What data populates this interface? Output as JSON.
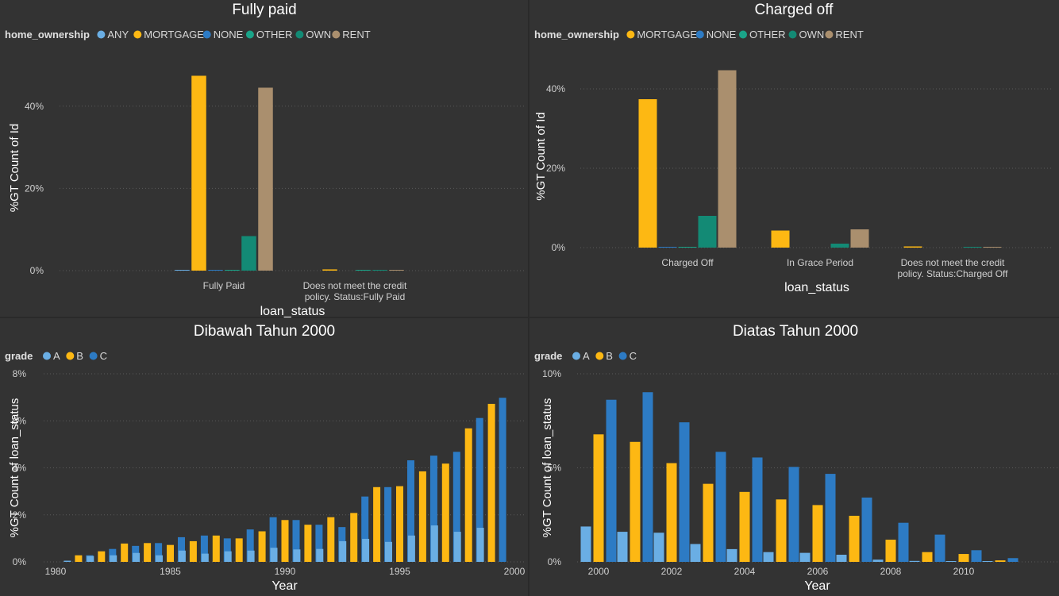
{
  "colors": {
    "background": "#333333",
    "grid": "#5a5a5a",
    "text": "#ffffff",
    "tick_text": "#d0d0d0",
    "ANY": "#6aaee4",
    "MORTGAGE": "#fdb813",
    "NONE": "#2d7bc4",
    "OTHER": "#1aa489",
    "OWN": "#138a75",
    "RENT": "#aa8f6e",
    "A": "#6aaee4",
    "B": "#fdb813",
    "C": "#2d7bc4"
  },
  "chart_data": [
    {
      "type": "bar",
      "title": "Fully paid",
      "xlabel": "loan_status",
      "ylabel": "%GT Count of Id",
      "legend_title": "home_ownership",
      "legend_position": "top-left",
      "ylim": [
        0,
        0.5
      ],
      "yticks": [
        0,
        0.2,
        0.4
      ],
      "ytick_labels": [
        "0%",
        "20%",
        "40%"
      ],
      "grid": true,
      "categories": [
        [
          "Fully Paid"
        ],
        [
          "Does not meet the credit",
          "policy. Status:Fully Paid"
        ]
      ],
      "series": [
        {
          "name": "ANY",
          "values": [
            0.0003,
            0
          ]
        },
        {
          "name": "MORTGAGE",
          "values": [
            0.474,
            0.003
          ]
        },
        {
          "name": "NONE",
          "values": [
            0.0003,
            0
          ]
        },
        {
          "name": "OTHER",
          "values": [
            0.0005,
            0.0003
          ]
        },
        {
          "name": "OWN",
          "values": [
            0.084,
            0.0004
          ]
        },
        {
          "name": "RENT",
          "values": [
            0.445,
            0.001
          ]
        }
      ]
    },
    {
      "type": "bar",
      "title": "Charged off",
      "xlabel": "loan_status",
      "ylabel": "%GT Count of Id",
      "legend_title": "home_ownership",
      "legend_position": "top-left",
      "ylim": [
        0,
        0.46
      ],
      "yticks": [
        0,
        0.2,
        0.4
      ],
      "ytick_labels": [
        "0%",
        "20%",
        "40%"
      ],
      "grid": true,
      "categories": [
        [
          "Charged Off"
        ],
        [
          "In Grace Period"
        ],
        [
          "Does not meet the credit",
          "policy. Status:Charged Off"
        ]
      ],
      "series": [
        {
          "name": "MORTGAGE",
          "values": [
            0.374,
            0.043,
            0.003
          ]
        },
        {
          "name": "NONE",
          "values": [
            0.0003,
            0,
            0
          ]
        },
        {
          "name": "OTHER",
          "values": [
            0.0005,
            0,
            0
          ]
        },
        {
          "name": "OWN",
          "values": [
            0.08,
            0.01,
            0.0003
          ]
        },
        {
          "name": "RENT",
          "values": [
            0.447,
            0.046,
            0.001
          ]
        }
      ]
    },
    {
      "type": "bar",
      "title": "Dibawah Tahun 2000",
      "xlabel": "Year",
      "ylabel": "%GT Count of loan_status",
      "legend_title": "grade",
      "legend_position": "top-left",
      "ylim": [
        0,
        0.08
      ],
      "yticks": [
        0,
        0.02,
        0.04,
        0.06,
        0.08
      ],
      "ytick_labels": [
        "0%",
        "2%",
        "4%",
        "6%",
        "8%"
      ],
      "grid": true,
      "xlim": [
        1980,
        2000
      ],
      "xticks": [
        1980,
        1985,
        1990,
        1995,
        2000
      ],
      "xtick_labels": [
        "1980",
        "1985",
        "1990",
        "1995",
        "2000"
      ],
      "x": [
        1981,
        1982,
        1983,
        1984,
        1985,
        1986,
        1987,
        1988,
        1989,
        1990,
        1991,
        1992,
        1993,
        1994,
        1995,
        1996,
        1997,
        1998,
        1999
      ],
      "series": [
        {
          "name": "A",
          "values": [
            0.0005,
            0.0025,
            0.0028,
            0.0038,
            0.0028,
            0.0048,
            0.0035,
            0.0045,
            0.0048,
            0.006,
            0.0053,
            0.0055,
            0.0088,
            0.0098,
            0.0085,
            0.0112,
            0.0155,
            0.0128,
            0.0145
          ]
        },
        {
          "name": "B",
          "values": [
            0.0028,
            0.0045,
            0.0078,
            0.008,
            0.0072,
            0.0088,
            0.0112,
            0.01,
            0.013,
            0.0178,
            0.0158,
            0.019,
            0.0208,
            0.0318,
            0.0322,
            0.0385,
            0.0418,
            0.0568,
            0.0672
          ]
        },
        {
          "name": "C",
          "values": [
            0.0028,
            0.0055,
            0.0068,
            0.008,
            0.0105,
            0.0112,
            0.01,
            0.0138,
            0.019,
            0.0178,
            0.0158,
            0.0148,
            0.0278,
            0.0318,
            0.0432,
            0.0452,
            0.0468,
            0.0612,
            0.0698
          ]
        }
      ]
    },
    {
      "type": "bar",
      "title": "Diatas Tahun 2000",
      "xlabel": "Year",
      "ylabel": "%GT Count of loan_status",
      "legend_title": "grade",
      "legend_position": "top-left",
      "ylim": [
        0,
        0.1
      ],
      "yticks": [
        0,
        0.05,
        0.1
      ],
      "ytick_labels": [
        "0%",
        "5%",
        "10%"
      ],
      "grid": true,
      "xlim": [
        2000,
        2011
      ],
      "xticks": [
        2000,
        2002,
        2004,
        2006,
        2008,
        2010
      ],
      "xtick_labels": [
        "2000",
        "2002",
        "2004",
        "2006",
        "2008",
        "2010"
      ],
      "x": [
        2000,
        2001,
        2002,
        2003,
        2004,
        2005,
        2006,
        2007,
        2008,
        2009,
        2010,
        2011
      ],
      "series": [
        {
          "name": "A",
          "values": [
            0.0188,
            0.016,
            0.0155,
            0.0095,
            0.0068,
            0.0052,
            0.0048,
            0.0038,
            0.0012,
            0.0005,
            0.0002,
            0.0004
          ]
        },
        {
          "name": "B",
          "values": [
            0.0678,
            0.0638,
            0.0525,
            0.0415,
            0.0372,
            0.0332,
            0.0302,
            0.0245,
            0.0118,
            0.0052,
            0.0042,
            0.0008
          ]
        },
        {
          "name": "C",
          "values": [
            0.0862,
            0.0902,
            0.0742,
            0.0585,
            0.0555,
            0.0505,
            0.0468,
            0.0342,
            0.0208,
            0.0145,
            0.0062,
            0.002
          ]
        }
      ]
    }
  ]
}
